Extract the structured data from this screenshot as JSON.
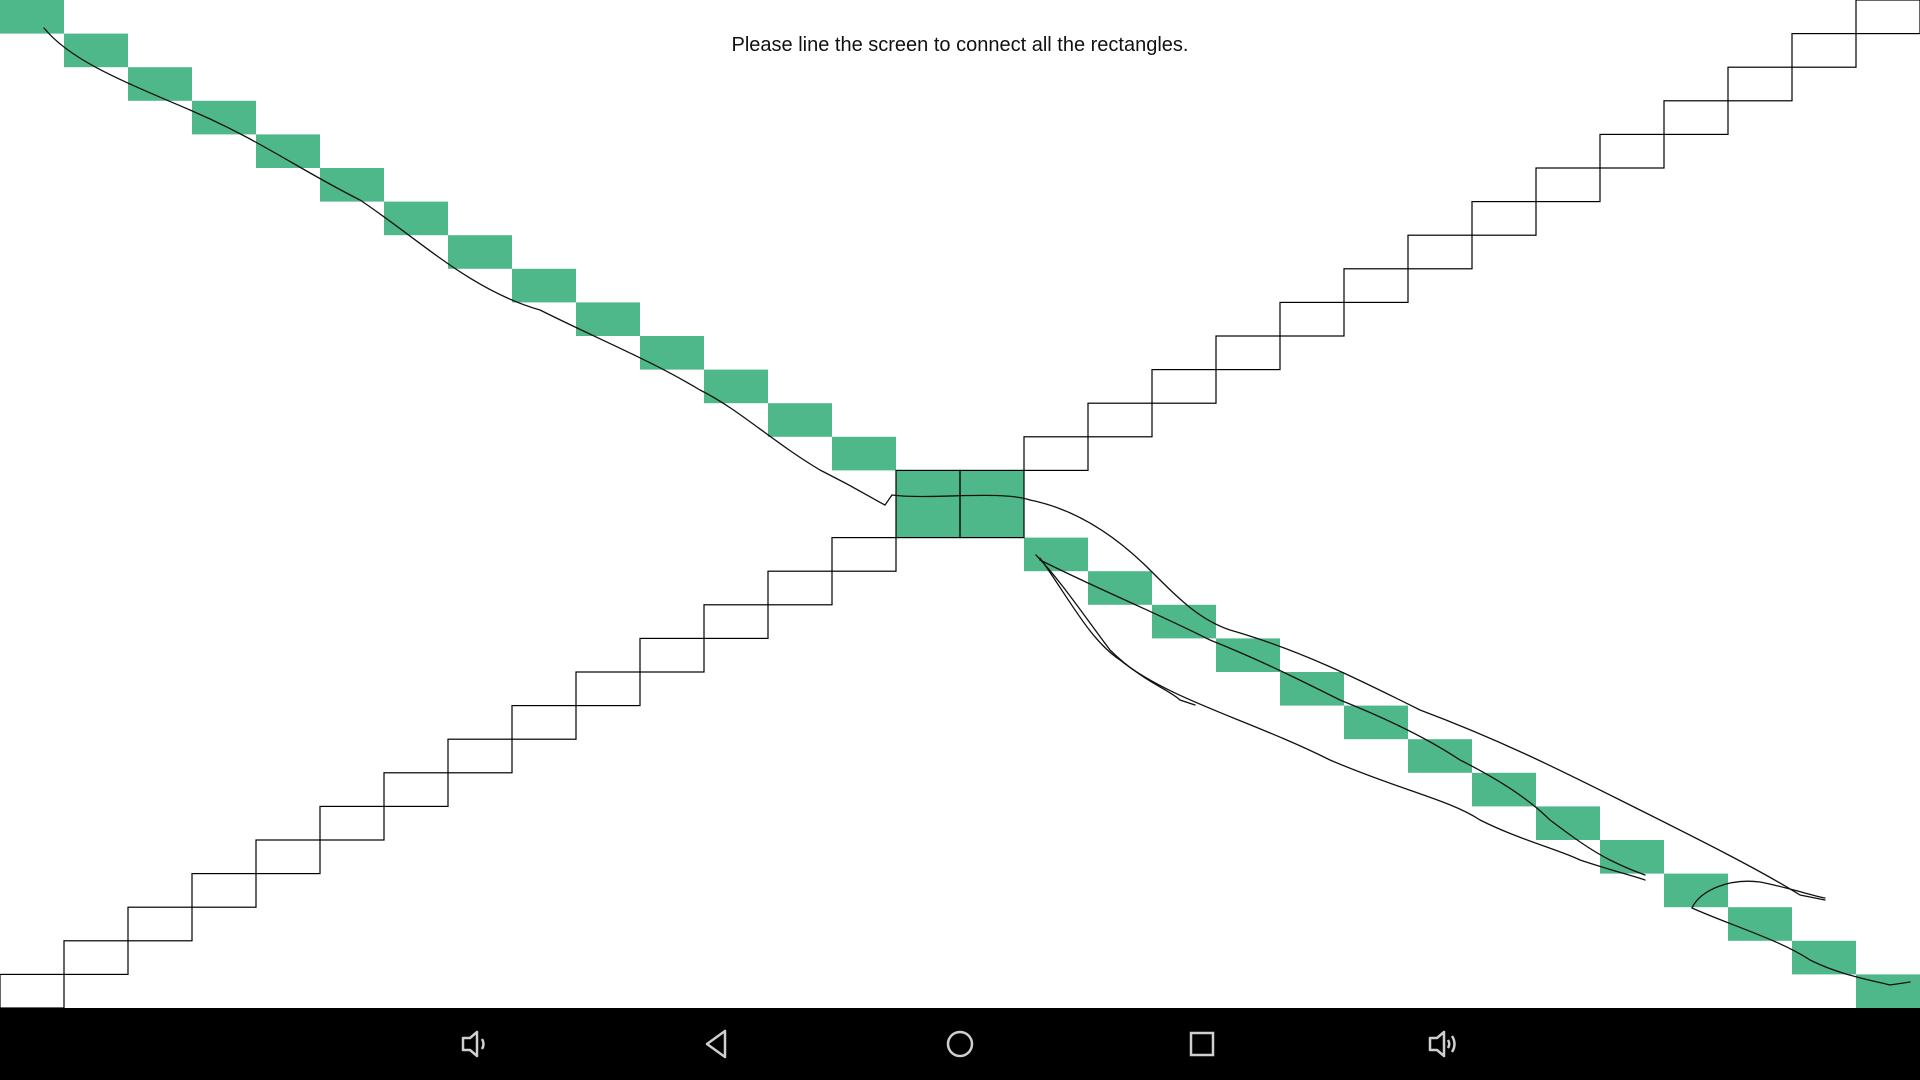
{
  "instruction": "Please line the screen to connect all the rectangles.",
  "colors": {
    "filled": "#4fb88a",
    "outline": "#000000",
    "background": "#ffffff",
    "navbar": "#000000",
    "nav_icon": "#cfcfcf",
    "trace": "#111111"
  },
  "board": {
    "descending_diagonal": {
      "cells": 30,
      "filled": [
        true,
        true,
        true,
        true,
        true,
        true,
        true,
        true,
        true,
        true,
        true,
        true,
        true,
        true,
        true,
        true,
        true,
        true,
        true,
        true,
        true,
        true,
        true,
        true,
        true,
        true,
        true,
        true,
        true,
        true
      ]
    },
    "ascending_diagonal": {
      "cells": 30,
      "filled": [
        false,
        false,
        false,
        false,
        false,
        false,
        false,
        false,
        false,
        false,
        false,
        false,
        false,
        false,
        true,
        true,
        false,
        false,
        false,
        false,
        false,
        false,
        false,
        false,
        false,
        false,
        false,
        false,
        false,
        false
      ]
    },
    "touched_progress": 0.53
  },
  "navbar": {
    "buttons": [
      {
        "name": "volume-down-icon",
        "icon": "volume-down"
      },
      {
        "name": "back-icon",
        "icon": "back-triangle"
      },
      {
        "name": "home-icon",
        "icon": "home-circle"
      },
      {
        "name": "recents-icon",
        "icon": "recents-square"
      },
      {
        "name": "volume-up-icon",
        "icon": "volume-up"
      }
    ]
  }
}
